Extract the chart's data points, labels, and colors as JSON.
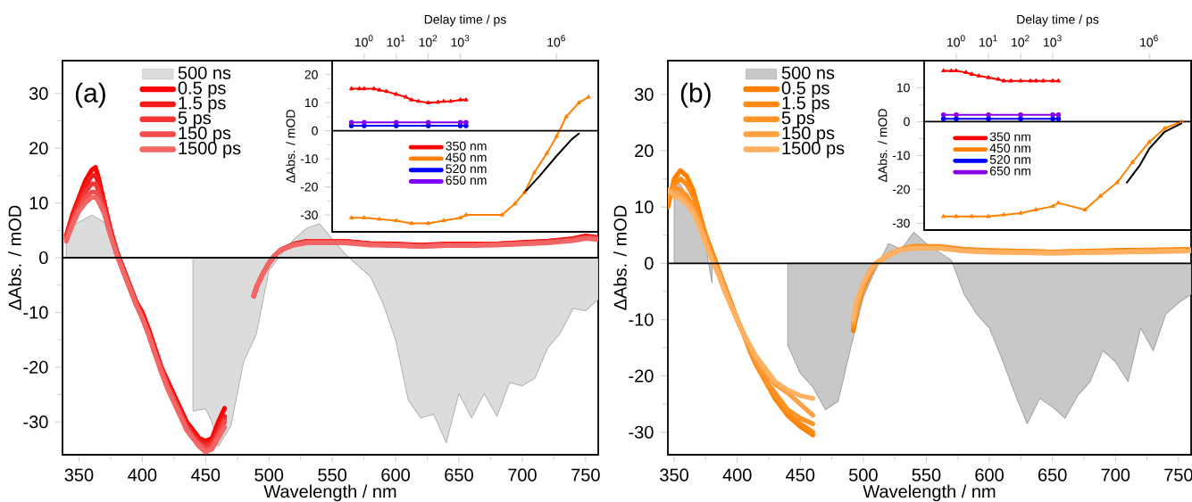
{
  "chart_data": [
    {
      "type": "line",
      "annotations": [
        "(a)"
      ],
      "xlabel": "Wavelength / nm",
      "ylabel": "ΔAbs. / mOD",
      "xlim": [
        337,
        760
      ],
      "ylim": [
        -36,
        36
      ],
      "xticks": [
        350,
        400,
        450,
        500,
        550,
        600,
        650,
        700,
        750
      ],
      "yticks": [
        -30,
        -20,
        -10,
        0,
        10,
        20,
        30
      ],
      "legend": "top left",
      "ref_lines": [
        {
          "axis": "y",
          "value": 0,
          "color": "#000000"
        }
      ],
      "series": [
        {
          "name": "500 ns",
          "type": "area",
          "color": "#dcdcdc",
          "x": [
            340,
            350,
            360,
            370,
            380,
            400,
            440,
            450,
            455,
            460,
            470,
            480,
            490,
            500,
            510,
            520,
            530,
            540,
            550,
            560,
            570,
            580,
            590,
            600,
            610,
            620,
            630,
            640,
            650,
            660,
            670,
            680,
            690,
            700,
            710,
            720,
            730,
            740,
            750,
            760
          ],
          "values": [
            5,
            6.5,
            7.8,
            6.5,
            0,
            null,
            -28,
            -27.6,
            -30,
            -34.5,
            -30.7,
            -19,
            -14,
            -2.4,
            0.7,
            3.4,
            5.4,
            6.2,
            3.4,
            0.7,
            -1.4,
            -3.4,
            -8.3,
            -15,
            -26,
            -29.3,
            -28.6,
            -33.8,
            -24.8,
            -29.3,
            -24.8,
            -29,
            -22.8,
            -23.4,
            -22,
            -16.5,
            -13.8,
            -9.3,
            -9.7,
            -7.6
          ]
        },
        {
          "name": "0.5 ps",
          "color": "#ff0000",
          "x": [
            340,
            345,
            350,
            355,
            360,
            363,
            365,
            370,
            375,
            380,
            385,
            390,
            395,
            400,
            405,
            410,
            415,
            420,
            425,
            430,
            435,
            440,
            445,
            450,
            455,
            460,
            465,
            475,
            488,
            490,
            495,
            500,
            505,
            510,
            520,
            530,
            540,
            550,
            560,
            580,
            600,
            620,
            640,
            660,
            680,
            700,
            720,
            740,
            750,
            760
          ],
          "values": [
            4,
            8,
            11,
            14,
            16,
            16.5,
            15,
            10,
            5,
            1,
            -2,
            -5,
            -8,
            -10,
            -13,
            -16.5,
            -20,
            -22.5,
            -25,
            -27.5,
            -30,
            -31.5,
            -33,
            -33.5,
            -33,
            -30,
            -27.5,
            null,
            -7,
            -5.5,
            -3,
            -1,
            0.5,
            1.5,
            2.5,
            3,
            3,
            3,
            3,
            2.6,
            2.5,
            2.3,
            2.5,
            2.5,
            2.5,
            2.8,
            3,
            3.5,
            4,
            3.7
          ]
        },
        {
          "name": "1.5 ps",
          "color": "#f31c1c",
          "x": [
            340,
            345,
            350,
            355,
            360,
            363,
            365,
            370,
            375,
            380,
            385,
            390,
            395,
            400,
            405,
            410,
            415,
            420,
            425,
            430,
            435,
            440,
            445,
            450,
            455,
            460,
            465,
            475,
            488,
            490,
            495,
            500,
            505,
            510,
            520,
            530,
            540,
            550,
            560,
            580,
            600,
            620,
            640,
            660,
            680,
            700,
            720,
            740,
            750,
            760
          ],
          "values": [
            4,
            7.5,
            10.5,
            13,
            15,
            15,
            14,
            9.5,
            5,
            1,
            -2,
            -5,
            -8,
            -10.5,
            -13.5,
            -17,
            -20,
            -23,
            -25.5,
            -28,
            -30.5,
            -32,
            -33.5,
            -34,
            -33.5,
            -31,
            -29,
            null,
            -7,
            -5.5,
            -3,
            -1,
            0.5,
            1.5,
            2.5,
            3,
            3,
            3,
            3,
            2.5,
            2.4,
            2.2,
            2.4,
            2.4,
            2.5,
            2.7,
            3,
            3.4,
            3.8,
            3.6
          ]
        },
        {
          "name": "5 ps",
          "color": "#f23535",
          "x": [
            340,
            345,
            350,
            355,
            360,
            363,
            365,
            370,
            375,
            380,
            385,
            390,
            395,
            400,
            405,
            410,
            415,
            420,
            425,
            430,
            435,
            440,
            445,
            450,
            455,
            460,
            465,
            475,
            488,
            490,
            495,
            500,
            505,
            510,
            520,
            530,
            540,
            550,
            560,
            580,
            600,
            620,
            640,
            660,
            680,
            700,
            720,
            740,
            750,
            760
          ],
          "values": [
            3.5,
            7,
            9.5,
            12,
            13.5,
            13.5,
            12.5,
            9,
            4.5,
            0.5,
            -2.5,
            -5.5,
            -8.5,
            -11,
            -14,
            -17.5,
            -20.5,
            -23.5,
            -26,
            -28.5,
            -31,
            -32.5,
            -34,
            -34.5,
            -34,
            -32,
            -29.5,
            null,
            -7,
            -5.5,
            -3,
            -1,
            0.5,
            1.5,
            2.4,
            2.9,
            2.9,
            2.9,
            2.9,
            2.5,
            2.4,
            2.2,
            2.4,
            2.4,
            2.4,
            2.6,
            2.9,
            3.3,
            3.7,
            3.5
          ]
        },
        {
          "name": "150 ps",
          "color": "#f24d4d",
          "x": [
            340,
            345,
            350,
            355,
            360,
            363,
            365,
            370,
            375,
            380,
            385,
            390,
            395,
            400,
            405,
            410,
            415,
            420,
            425,
            430,
            435,
            440,
            445,
            450,
            455,
            460,
            465,
            475,
            488,
            490,
            495,
            500,
            505,
            510,
            520,
            530,
            540,
            550,
            560,
            580,
            600,
            620,
            640,
            660,
            680,
            700,
            720,
            740,
            750,
            760
          ],
          "values": [
            3.5,
            6.5,
            9,
            11,
            12,
            12,
            11.5,
            8.5,
            4,
            0.5,
            -2.5,
            -5.5,
            -8.5,
            -11,
            -14,
            -17.5,
            -20.5,
            -23.5,
            -26,
            -28.5,
            -31,
            -33,
            -34,
            -35,
            -34.5,
            -32.5,
            -30,
            null,
            -7,
            -5.5,
            -3,
            -1,
            0.5,
            1.5,
            2.4,
            2.8,
            2.8,
            2.8,
            2.8,
            2.4,
            2.3,
            2.1,
            2.3,
            2.3,
            2.4,
            2.6,
            2.8,
            3.2,
            3.6,
            3.4
          ]
        },
        {
          "name": "1500 ps",
          "color": "#f26666",
          "x": [
            340,
            345,
            350,
            355,
            360,
            363,
            365,
            370,
            375,
            380,
            385,
            390,
            395,
            400,
            405,
            410,
            415,
            420,
            425,
            430,
            435,
            440,
            445,
            450,
            455,
            460,
            465,
            475,
            488,
            490,
            495,
            500,
            505,
            510,
            520,
            530,
            540,
            550,
            560,
            580,
            600,
            620,
            640,
            660,
            680,
            700,
            720,
            740,
            750,
            760
          ],
          "values": [
            3,
            6,
            8.5,
            10,
            11,
            11,
            10.5,
            8,
            4,
            0.5,
            -2.5,
            -5.5,
            -8.5,
            -11,
            -14,
            -17.5,
            -21,
            -24,
            -26.5,
            -29,
            -31.5,
            -33,
            -34.5,
            -35.5,
            -35,
            -33,
            -31,
            null,
            -7,
            -5.5,
            -3,
            -1,
            0.5,
            1.5,
            2.3,
            2.7,
            2.7,
            2.7,
            2.7,
            2.3,
            2.2,
            2,
            2.2,
            2.2,
            2.3,
            2.5,
            2.7,
            3.1,
            3.5,
            3.3
          ]
        }
      ]
    },
    {
      "type": "line",
      "xlabel": "Delay time / ps",
      "ylabel": "ΔAbs. / mOD",
      "log": "x",
      "xlim": [
        0.1,
        20000000
      ],
      "ylim": [
        -36,
        25
      ],
      "xticks": [
        {
          "value": 1,
          "label": "10$^{0}$"
        },
        {
          "value": 10,
          "label": "10$^{1}$"
        },
        {
          "value": 100,
          "label": "10$^{2}$"
        },
        {
          "value": 1000,
          "label": "10$^{3}$"
        },
        {
          "value": 1000000,
          "label": "10$^{6}$"
        }
      ],
      "yticks": [
        -30,
        -20,
        -10,
        0,
        10,
        20
      ],
      "legend": "center",
      "ref_lines": [
        {
          "axis": "y",
          "value": 0,
          "color": "#000000"
        }
      ],
      "series": [
        {
          "name": "350 nm",
          "color": "#ff0000",
          "marker": "triangle",
          "x": [
            0.4,
            0.7,
            1,
            2,
            3,
            5,
            10,
            20,
            30,
            50,
            100,
            200,
            300,
            500,
            1000,
            1500
          ],
          "values": [
            15,
            15,
            15,
            15,
            14.5,
            14,
            13,
            12,
            11,
            10.5,
            10,
            10.2,
            10.5,
            10.5,
            11,
            11
          ]
        },
        {
          "name": "450 nm",
          "color": "#ff8000",
          "marker": "triangle",
          "x": [
            0.4,
            1,
            3,
            10,
            30,
            100,
            300,
            1000,
            1500,
            20000,
            50000,
            100000,
            200000,
            500000,
            1000000,
            2000000,
            5000000,
            10000000
          ],
          "values": [
            -31,
            -31,
            -31.5,
            -32,
            -33,
            -33,
            -32,
            -31,
            -30,
            -30,
            -26,
            -22,
            -15,
            -8,
            -2,
            5,
            10,
            12
          ]
        },
        {
          "name": "520 nm",
          "color": "#0000ff",
          "marker": "circle",
          "x": [
            0.4,
            1,
            10,
            100,
            1000,
            1500
          ],
          "values": [
            1.8,
            1.8,
            1.8,
            1.8,
            1.8,
            1.8
          ]
        },
        {
          "name": "650 nm",
          "color": "#8000ff",
          "marker": "circle",
          "x": [
            0.4,
            1,
            10,
            100,
            1000,
            1500
          ],
          "values": [
            3,
            3,
            3,
            3,
            3,
            3
          ]
        },
        {
          "color": "#000000",
          "marker": "none",
          "x": [
            100000,
            300000,
            1000000,
            3000000,
            5000000
          ],
          "values": [
            -22,
            -16,
            -9,
            -3,
            -1
          ]
        }
      ]
    },
    {
      "type": "line",
      "annotations": [
        "(b)"
      ],
      "xlabel": "Wavelength / nm",
      "ylabel": "ΔAbs. / mOD",
      "xlim": [
        345,
        760
      ],
      "ylim": [
        -34,
        36
      ],
      "xticks": [
        350,
        400,
        450,
        500,
        550,
        600,
        650,
        700,
        750
      ],
      "yticks": [
        -30,
        -20,
        -10,
        0,
        10,
        20,
        30
      ],
      "legend": "top left",
      "ref_lines": [
        {
          "axis": "y",
          "value": 0,
          "color": "#000000"
        }
      ],
      "series": [
        {
          "name": "500 ns",
          "type": "area",
          "color": "#c8c8c8",
          "x": [
            350,
            355,
            360,
            365,
            370,
            375,
            380,
            410,
            440,
            450,
            460,
            470,
            480,
            490,
            500,
            510,
            520,
            530,
            540,
            550,
            560,
            570,
            580,
            590,
            600,
            610,
            620,
            630,
            640,
            650,
            660,
            670,
            680,
            690,
            700,
            710,
            720,
            730,
            740,
            750,
            760
          ],
          "values": [
            15,
            14,
            12,
            10,
            7,
            3,
            -3.5,
            null,
            -14.5,
            -19.5,
            -22,
            -26,
            -24.5,
            -15,
            -6,
            -1,
            3.5,
            2.5,
            5.5,
            3.5,
            2,
            0.5,
            -5.5,
            -9,
            -11.5,
            -17,
            -23,
            -28.5,
            -24,
            -25.5,
            -27.5,
            -23.5,
            -21,
            -15.5,
            -17.5,
            -21,
            -11.5,
            -15.5,
            -9,
            -7,
            -5.5
          ]
        },
        {
          "name": "0.5 ps",
          "color": "#ff8000",
          "x": [
            345,
            350,
            355,
            360,
            365,
            370,
            375,
            380,
            385,
            390,
            395,
            400,
            405,
            410,
            415,
            420,
            425,
            430,
            440,
            450,
            460,
            476,
            492,
            495,
            500,
            505,
            510,
            520,
            530,
            540,
            560,
            580,
            600,
            650,
            700,
            760
          ],
          "values": [
            10,
            15,
            16.5,
            15.5,
            13,
            9,
            5,
            2,
            -1,
            -4,
            -7,
            -10,
            -12.5,
            -15.5,
            -18,
            -20,
            -22,
            -24,
            -27,
            -29,
            -30.5,
            null,
            -12,
            -8,
            -4.5,
            -2,
            0,
            1.5,
            2.5,
            3,
            3,
            2.5,
            2.3,
            2,
            2.3,
            2.5
          ]
        },
        {
          "name": "1.5 ps",
          "color": "#ff8a14",
          "x": [
            345,
            350,
            355,
            360,
            365,
            370,
            375,
            380,
            385,
            390,
            395,
            400,
            405,
            410,
            415,
            420,
            425,
            430,
            440,
            450,
            460,
            476,
            492,
            495,
            500,
            505,
            510,
            520,
            530,
            540,
            560,
            580,
            600,
            650,
            700,
            760
          ],
          "values": [
            11,
            14,
            15,
            14,
            12,
            8.5,
            5,
            2,
            -1,
            -4,
            -7,
            -10,
            -12.5,
            -15.5,
            -18,
            -20,
            -22,
            -23.5,
            -26.5,
            -28.5,
            -30,
            null,
            -11,
            -7.5,
            -4,
            -1.5,
            0,
            1.5,
            2.5,
            3,
            2.9,
            2.4,
            2.2,
            2,
            2.2,
            2.4
          ]
        },
        {
          "name": "5 ps",
          "color": "#ff9429",
          "x": [
            345,
            350,
            355,
            360,
            365,
            370,
            375,
            380,
            385,
            390,
            395,
            400,
            405,
            410,
            415,
            420,
            425,
            430,
            440,
            450,
            460,
            476,
            492,
            495,
            500,
            505,
            510,
            520,
            530,
            540,
            560,
            580,
            600,
            650,
            700,
            760
          ],
          "values": [
            12,
            13.5,
            13,
            12,
            10,
            7.5,
            4,
            1,
            -1.5,
            -4.5,
            -7.5,
            -10,
            -12.5,
            -15,
            -17.5,
            -19.5,
            -21.5,
            -23,
            -26,
            -27.5,
            -28.5,
            null,
            -11,
            -7.5,
            -4,
            -1.5,
            0,
            1.5,
            2.5,
            2.8,
            2.8,
            2.3,
            2.1,
            1.9,
            2.1,
            2.3
          ]
        },
        {
          "name": "150 ps",
          "color": "#ffa142",
          "x": [
            345,
            350,
            355,
            360,
            365,
            370,
            375,
            380,
            385,
            390,
            395,
            400,
            405,
            410,
            415,
            420,
            425,
            430,
            440,
            450,
            460,
            476,
            492,
            495,
            500,
            505,
            510,
            520,
            530,
            540,
            560,
            580,
            600,
            650,
            700,
            760
          ],
          "values": [
            13,
            12.5,
            12,
            11,
            9.5,
            7,
            4,
            1,
            -1.5,
            -4.5,
            -7.5,
            -10,
            -12.5,
            -15,
            -17,
            -18.5,
            -20,
            -21.5,
            -23,
            -25,
            -27,
            null,
            -10.5,
            -7,
            -3.5,
            -1.5,
            0,
            1.5,
            2.4,
            2.7,
            2.7,
            2.2,
            2,
            1.8,
            2,
            2.2
          ]
        },
        {
          "name": "1500 ps",
          "color": "#ffb060",
          "x": [
            345,
            350,
            355,
            360,
            365,
            370,
            375,
            380,
            385,
            390,
            395,
            400,
            405,
            410,
            415,
            420,
            425,
            430,
            440,
            450,
            460,
            476,
            492,
            495,
            500,
            505,
            510,
            520,
            530,
            540,
            560,
            580,
            600,
            650,
            700,
            760
          ],
          "values": [
            13,
            12,
            11.5,
            10.5,
            9,
            6.5,
            3.5,
            0.5,
            -2,
            -5,
            -7.5,
            -10,
            -12.5,
            -14.5,
            -16.5,
            -18,
            -19.5,
            -21,
            -22.5,
            -23.5,
            -24,
            null,
            -10,
            -6.5,
            -3.5,
            -1.5,
            0,
            1.5,
            2.4,
            2.7,
            2.7,
            2.2,
            2,
            1.8,
            2,
            2.2
          ]
        }
      ]
    },
    {
      "type": "line",
      "xlabel": "Delay time / ps",
      "ylabel": "ΔAbs. / mOD",
      "log": "x",
      "xlim": [
        0.1,
        20000000
      ],
      "ylim": [
        -32,
        18
      ],
      "xticks": [
        {
          "value": 1,
          "label": "10$^{0}$"
        },
        {
          "value": 10,
          "label": "10$^{1}$"
        },
        {
          "value": 100,
          "label": "10$^{2}$"
        },
        {
          "value": 1000,
          "label": "10$^{3}$"
        },
        {
          "value": 1000000,
          "label": "10$^{6}$"
        }
      ],
      "yticks": [
        -30,
        -20,
        -10,
        0,
        10
      ],
      "legend": "center",
      "ref_lines": [
        {
          "axis": "y",
          "value": 0,
          "color": "#000000"
        }
      ],
      "series": [
        {
          "name": "350 nm",
          "color": "#ff0000",
          "marker": "triangle",
          "x": [
            0.4,
            0.7,
            1,
            2,
            3,
            5,
            10,
            20,
            30,
            50,
            100,
            200,
            300,
            500,
            1000,
            1500
          ],
          "values": [
            15,
            15,
            15,
            14.5,
            14,
            13.5,
            13,
            12.5,
            12,
            12,
            12,
            12,
            12,
            12,
            12,
            12
          ]
        },
        {
          "name": "450 nm",
          "color": "#ff8000",
          "marker": "triangle",
          "x": [
            0.4,
            1,
            3,
            10,
            30,
            100,
            300,
            1000,
            1500,
            10000,
            30000,
            100000,
            300000,
            1000000,
            3000000,
            10000000
          ],
          "values": [
            -28,
            -28,
            -28,
            -28,
            -27.5,
            -27,
            -26,
            -25,
            -24,
            -26,
            -22,
            -18,
            -12,
            -6,
            -2,
            0
          ]
        },
        {
          "name": "520 nm",
          "color": "#0000ff",
          "marker": "circle",
          "x": [
            0.4,
            1,
            10,
            100,
            1000,
            1500
          ],
          "values": [
            0.8,
            0.8,
            0.8,
            0.8,
            0.8,
            0.8
          ]
        },
        {
          "name": "650 nm",
          "color": "#8a00e6",
          "marker": "circle",
          "x": [
            0.4,
            1,
            10,
            100,
            1000,
            1500
          ],
          "values": [
            2,
            2,
            2,
            2,
            2,
            2
          ]
        },
        {
          "color": "#000000",
          "marker": "none",
          "x": [
            200000,
            500000,
            1000000,
            3000000,
            10000000
          ],
          "values": [
            -18,
            -13,
            -8,
            -3,
            -0.5
          ]
        }
      ]
    }
  ]
}
